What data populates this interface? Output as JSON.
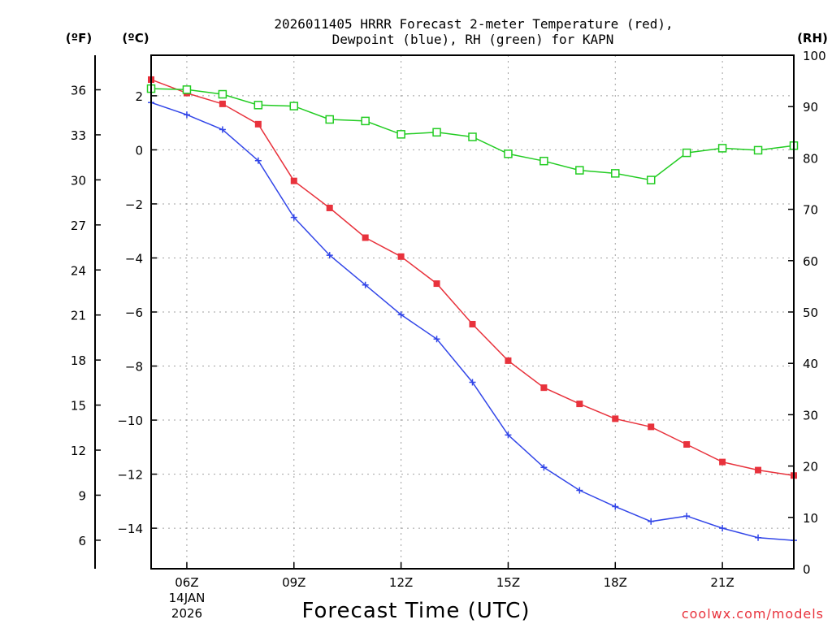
{
  "chart_data": {
    "type": "line",
    "title_line1": "2026011405 HRRR Forecast 2-meter Temperature (red),",
    "title_line2": "Dewpoint (blue), RH (green) for KAPN",
    "xlabel": "Forecast Time (UTC)",
    "credit": "coolwx.com/models",
    "date_label_1": "14JAN",
    "date_label_2": "2026",
    "units": {
      "fahrenheit": "(ºF)",
      "celsius": "(ºC)",
      "rh": "(RH)"
    },
    "x_hours": [
      5,
      6,
      7,
      8,
      9,
      10,
      11,
      12,
      13,
      14,
      15,
      16,
      17,
      18,
      19,
      20,
      21,
      22,
      23
    ],
    "xlim": [
      5,
      23
    ],
    "x_ticks": [
      {
        "hour": 6,
        "label": "06Z"
      },
      {
        "hour": 9,
        "label": "09Z"
      },
      {
        "hour": 12,
        "label": "12Z"
      },
      {
        "hour": 15,
        "label": "15Z"
      },
      {
        "hour": 18,
        "label": "18Z"
      },
      {
        "hour": 21,
        "label": "21Z"
      }
    ],
    "celsius_axis": {
      "range": [
        -15.5,
        3.5
      ],
      "ticks": [
        2,
        0,
        -2,
        -4,
        -6,
        -8,
        -10,
        -12,
        -14
      ],
      "tick_labels": [
        "2",
        "0",
        "−2",
        "−4",
        "−6",
        "−8",
        "−10",
        "−12",
        "−14"
      ]
    },
    "fahrenheit_axis": {
      "ticks": [
        36,
        33,
        30,
        27,
        24,
        21,
        18,
        15,
        12,
        9,
        6
      ],
      "tick_labels": [
        "36",
        "33",
        "30",
        "27",
        "24",
        "21",
        "18",
        "15",
        "12",
        "9",
        "6"
      ]
    },
    "rh_axis": {
      "range": [
        0,
        100
      ],
      "ticks": [
        100,
        90,
        80,
        70,
        60,
        50,
        40,
        30,
        20,
        10,
        0
      ],
      "tick_labels": [
        "100",
        "90",
        "80",
        "70",
        "60",
        "50",
        "40",
        "30",
        "20",
        "10",
        "0"
      ]
    },
    "series": [
      {
        "name": "Temperature",
        "unit": "C",
        "color": "#e8323c",
        "marker": "filled-square",
        "values": [
          2.6,
          2.1,
          1.7,
          0.95,
          -1.15,
          -2.15,
          -3.25,
          -3.95,
          -4.95,
          -6.45,
          -7.8,
          -8.8,
          -9.4,
          -9.95,
          -10.25,
          -10.9,
          -11.55,
          -11.85,
          -12.05
        ]
      },
      {
        "name": "Dewpoint",
        "unit": "C",
        "color": "#3246e8",
        "marker": "plus",
        "values": [
          1.75,
          1.3,
          0.75,
          -0.4,
          -2.5,
          -3.9,
          -5.0,
          -6.1,
          -7.0,
          -8.6,
          -10.55,
          -11.75,
          -12.6,
          -13.2,
          -13.75,
          -13.55,
          -14.0,
          -14.35,
          -14.45
        ]
      },
      {
        "name": "RH",
        "unit": "%",
        "color": "#22cc22",
        "marker": "open-square",
        "values": [
          93.5,
          93.3,
          92.4,
          90.3,
          90.1,
          87.5,
          87.2,
          84.6,
          85.0,
          84.1,
          80.8,
          79.4,
          77.6,
          77.0,
          75.7,
          81.0,
          81.9,
          81.5,
          82.4
        ]
      }
    ]
  }
}
